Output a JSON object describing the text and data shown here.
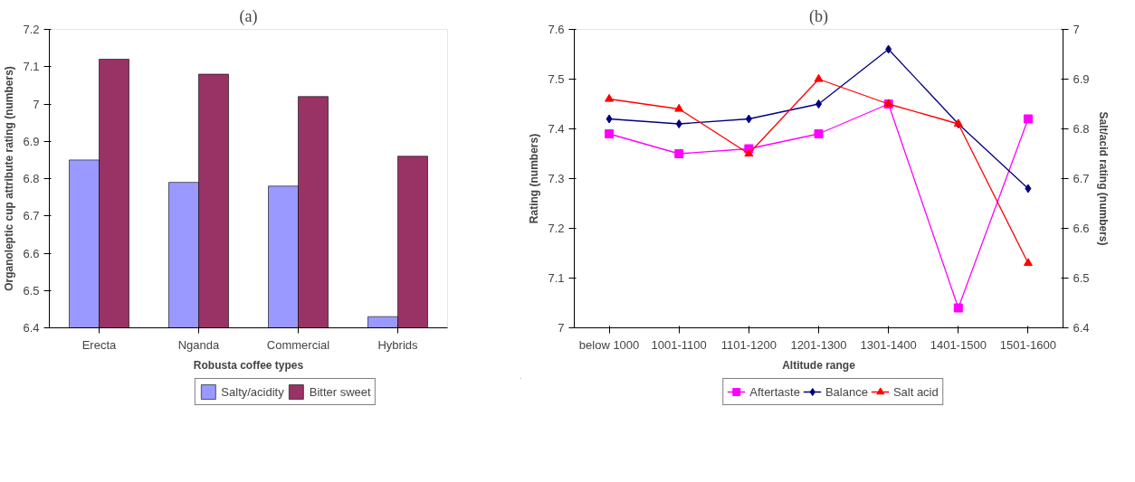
{
  "chart_data": [
    {
      "type": "bar",
      "title": "(a)",
      "xlabel": "Robusta coffee types",
      "ylabel": "Organoleptic cup attribute rating (numbers)",
      "categories": [
        "Erecta",
        "Nganda",
        "Commercial",
        "Hybrids"
      ],
      "series": [
        {
          "name": "Salty/acidity",
          "color": "#9999ff",
          "values": [
            6.85,
            6.79,
            6.78,
            6.43
          ]
        },
        {
          "name": "Bitter sweet",
          "color": "#993366",
          "values": [
            7.12,
            7.08,
            7.02,
            6.86
          ]
        }
      ],
      "ylim": [
        6.4,
        7.2
      ],
      "yticks": [
        6.4,
        6.5,
        6.6,
        6.7,
        6.8,
        6.9,
        {
          "value": 7.0,
          "label": "7"
        },
        7.1,
        7.2
      ],
      "grid": false,
      "legend": "bottom"
    },
    {
      "type": "line",
      "title": "(b)",
      "xlabel": "Altitude range",
      "ylabel": "Rating (numbers)",
      "y2label": "Salt/acid rating (numbers)",
      "categories": [
        "below 1000",
        "1001-1100",
        "1101-1200",
        "1201-1300",
        "1301-1400",
        "1401-1500",
        "1501-1600"
      ],
      "series": [
        {
          "name": "Aftertaste",
          "color": "#ff00ff",
          "marker": "square",
          "values": [
            7.39,
            7.35,
            7.36,
            7.39,
            7.45,
            7.04,
            7.42
          ]
        },
        {
          "name": "Balance",
          "color": "#000080",
          "marker": "diamond",
          "values": [
            7.42,
            7.41,
            7.42,
            7.45,
            7.56,
            7.41,
            7.28
          ]
        },
        {
          "name": "Salt acid",
          "color": "#ff0000",
          "marker": "triangle",
          "axis": "y2",
          "values": [
            6.86,
            6.84,
            6.75,
            6.9,
            6.85,
            6.81,
            6.53
          ]
        }
      ],
      "ylim": [
        7.0,
        7.6
      ],
      "yticks": [
        {
          "value": 7.0,
          "label": "7"
        },
        7.1,
        7.2,
        7.3,
        7.4,
        7.5,
        7.6
      ],
      "y2lim": [
        6.4,
        7.0
      ],
      "y2ticks": [
        6.4,
        6.5,
        6.6,
        6.7,
        6.8,
        6.9,
        {
          "value": 7.0,
          "label": "7"
        }
      ],
      "grid": false,
      "legend": "bottom",
      "line_style": "solid"
    }
  ]
}
